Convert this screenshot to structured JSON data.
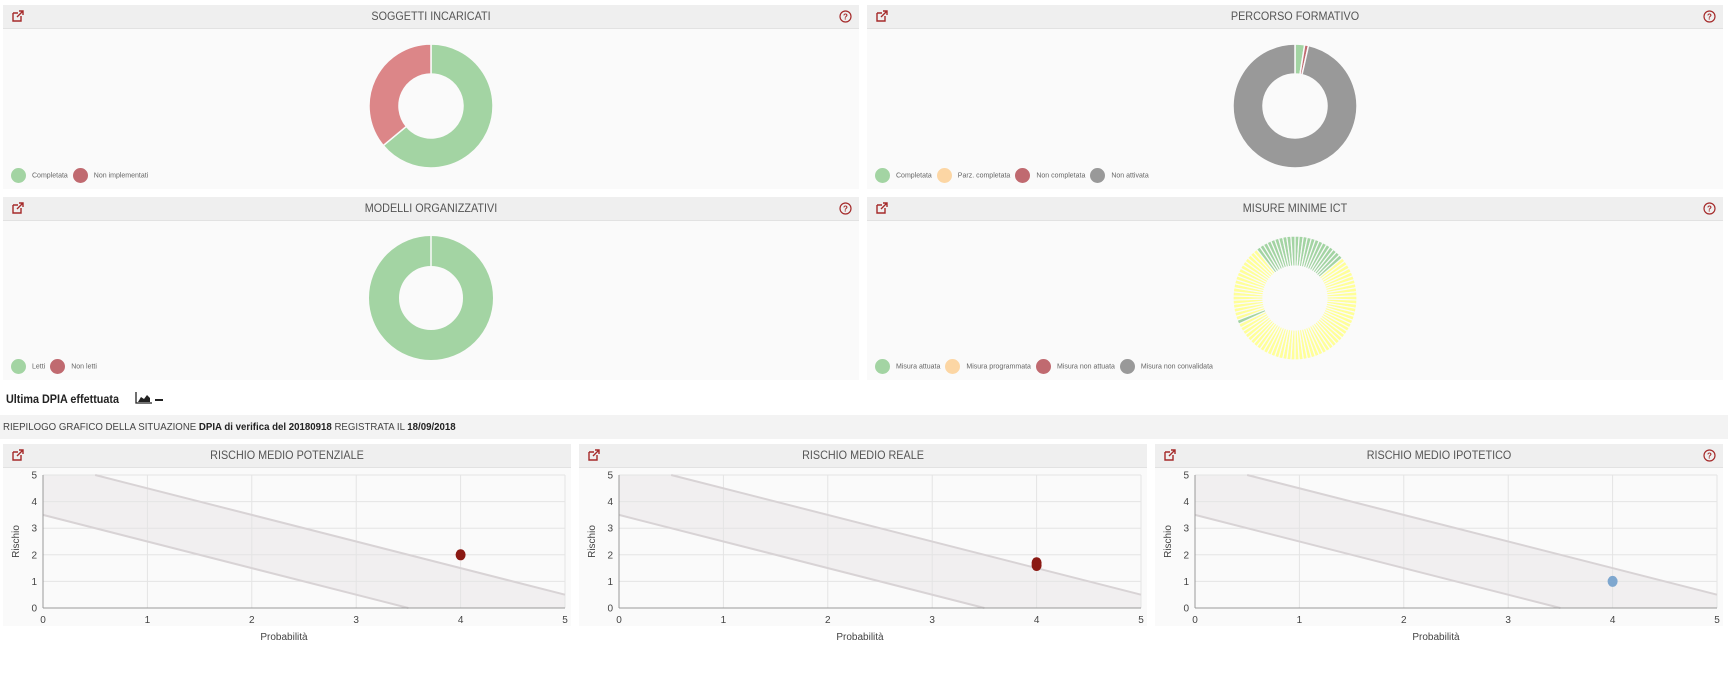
{
  "panels": [
    {
      "title": "SOGGETTI INCARICATI",
      "legend": [
        {
          "label": "Completata",
          "color": "#a3d4a3"
        },
        {
          "label": "Non implementati",
          "color": "#c06a70"
        }
      ]
    },
    {
      "title": "PERCORSO FORMATIVO",
      "legend": [
        {
          "label": "Completata",
          "color": "#a3d4a3"
        },
        {
          "label": "Parz. completata",
          "color": "#fcd6a4"
        },
        {
          "label": "Non completata",
          "color": "#c06a70"
        },
        {
          "label": "Non attivata",
          "color": "#999999"
        }
      ]
    },
    {
      "title": "MODELLI ORGANIZZATIVI",
      "legend": [
        {
          "label": "Letti",
          "color": "#a3d4a3"
        },
        {
          "label": "Non letti",
          "color": "#c06a70"
        }
      ]
    },
    {
      "title": "MISURE MINIME ICT",
      "legend": [
        {
          "label": "Misura attuata",
          "color": "#a3d4a3"
        },
        {
          "label": "Misura programmata",
          "color": "#fcd6a4"
        },
        {
          "label": "Misura non attuata",
          "color": "#c06a70"
        },
        {
          "label": "Misura non convalidata",
          "color": "#999999"
        }
      ]
    }
  ],
  "dpia": {
    "heading": "Ultima DPIA effettuata",
    "summary_prefix": "RIEPILOGO GRAFICO DELLA SITUAZIONE",
    "summary_name": "DPIA di verifica del 20180918",
    "summary_mid": "REGISTRATA IL",
    "summary_date": "18/09/2018"
  },
  "risk_panels": [
    {
      "title": "RISCHIO MEDIO POTENZIALE",
      "show_help": false
    },
    {
      "title": "RISCHIO MEDIO REALE",
      "show_help": false
    },
    {
      "title": "RISCHIO MEDIO IPOTETICO",
      "show_help": true
    }
  ],
  "chart_data": [
    {
      "type": "pie",
      "labels": [
        "Completata",
        "Non implementati"
      ],
      "values": [
        64,
        36
      ],
      "colors": [
        "#a3d4a3",
        "#dc8688"
      ]
    },
    {
      "type": "pie",
      "labels": [
        "Completata",
        "Parz. completata",
        "Non completata",
        "Non attivata"
      ],
      "values": [
        2.5,
        0,
        1,
        96.5
      ],
      "colors": [
        "#a3d4a3",
        "#fcd6a4",
        "#c06a70",
        "#999999"
      ]
    },
    {
      "type": "pie",
      "labels": [
        "Letti",
        "Non letti"
      ],
      "values": [
        100,
        0
      ],
      "colors": [
        "#a3d4a3",
        "#c06a70"
      ]
    },
    {
      "type": "pie",
      "labels": [
        "Misura attuata",
        "Misura programmata",
        "Misura non attuata",
        "Misura non convalidata"
      ],
      "segments": [
        "g",
        "g",
        "g",
        "g",
        "g",
        "g",
        "g",
        "g",
        "g",
        "g",
        "g",
        "g",
        "g",
        "y",
        "y",
        "y",
        "y",
        "y",
        "y",
        "y",
        "y",
        "y",
        "y",
        "y",
        "y",
        "y",
        "y",
        "y",
        "y",
        "y",
        "y",
        "y",
        "y",
        "y",
        "y",
        "y",
        "y",
        "y",
        "y",
        "y",
        "y",
        "y",
        "y",
        "y",
        "y",
        "y",
        "y",
        "y",
        "y",
        "y",
        "y",
        "y",
        "y",
        "y",
        "y",
        "y",
        "y",
        "y",
        "y",
        "y",
        "y",
        "y",
        "y",
        "y",
        "g",
        "y",
        "y",
        "y",
        "y",
        "y",
        "y",
        "y",
        "y",
        "y",
        "y",
        "y",
        "y",
        "y",
        "y",
        "y",
        "y",
        "y",
        "y",
        "y",
        "g",
        "g",
        "g",
        "g",
        "g",
        "g",
        "g",
        "g",
        "g",
        "g"
      ],
      "colors": {
        "g": "#a3d4a3",
        "y": "#ffff99"
      }
    },
    {
      "type": "scatter",
      "xlabel": "Probabilità",
      "ylabel": "Rischio",
      "xlim": [
        0,
        5
      ],
      "ylim": [
        0,
        5
      ],
      "xticks": [
        "0",
        "1",
        "2",
        "3",
        "4",
        "5"
      ],
      "yticks": [
        "0",
        "1",
        "2",
        "3",
        "4",
        "5"
      ],
      "points": [
        {
          "x": 4,
          "y": 2
        }
      ],
      "point_color": "#8b1a14"
    },
    {
      "type": "scatter",
      "xlabel": "Probabilità",
      "ylabel": "Rischio",
      "xlim": [
        0,
        5
      ],
      "ylim": [
        0,
        5
      ],
      "xticks": [
        "0",
        "1",
        "2",
        "3",
        "4",
        "5"
      ],
      "yticks": [
        "0",
        "1",
        "2",
        "3",
        "4",
        "5"
      ],
      "points": [
        {
          "x": 4,
          "y": 1.7
        },
        {
          "x": 4,
          "y": 1.6
        }
      ],
      "point_color": "#8b1a14"
    },
    {
      "type": "scatter",
      "xlabel": "Probabilità",
      "ylabel": "Rischio",
      "xlim": [
        0,
        5
      ],
      "ylim": [
        0,
        5
      ],
      "xticks": [
        "0",
        "1",
        "2",
        "3",
        "4",
        "5"
      ],
      "yticks": [
        "0",
        "1",
        "2",
        "3",
        "4",
        "5"
      ],
      "points": [
        {
          "x": 4,
          "y": 1
        }
      ],
      "point_color": "#7ea7cf"
    }
  ]
}
